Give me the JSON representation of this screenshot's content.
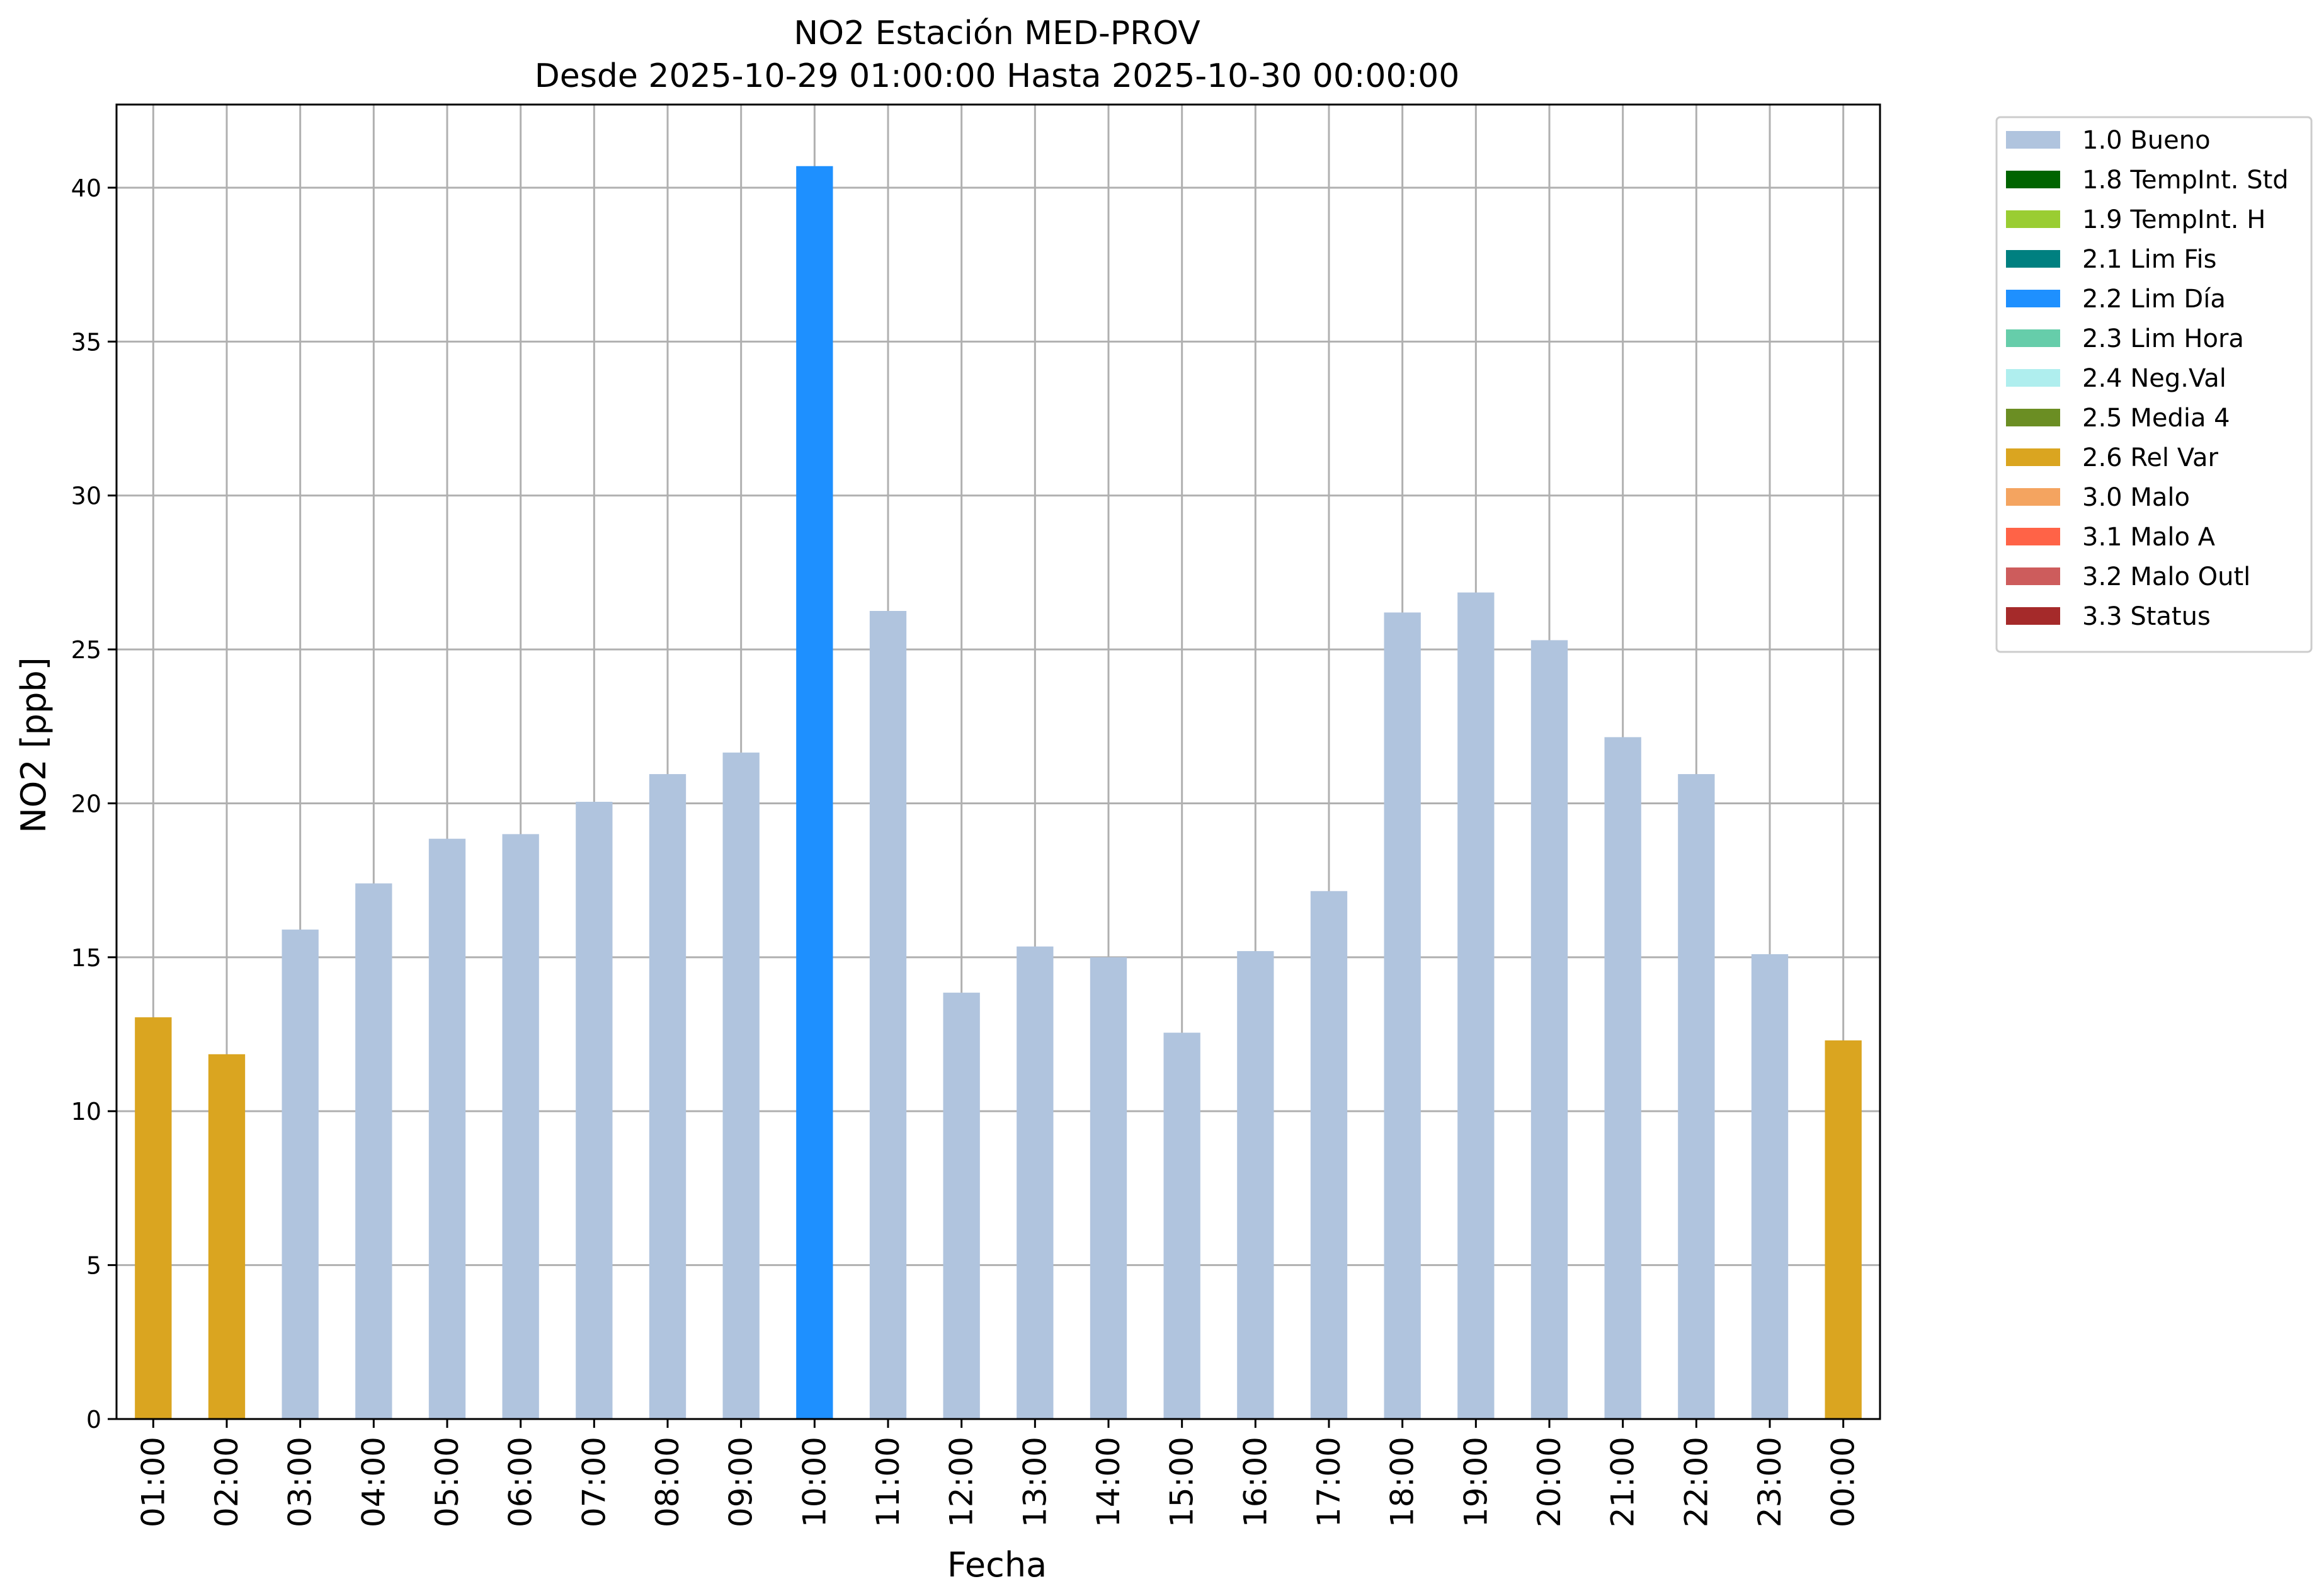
{
  "chart_data": {
    "type": "bar",
    "title": "NO2 Estación MED-PROV",
    "subtitle": "Desde 2025-10-29 01:00:00 Hasta 2025-10-30 00:00:00",
    "xlabel": "Fecha",
    "ylabel": "NO2 [ppb]",
    "ylim": [
      0,
      42.7
    ],
    "yticks": [
      0,
      5,
      10,
      15,
      20,
      25,
      30,
      35,
      40
    ],
    "grid": true,
    "legend_position": "outside-top-right",
    "categories": [
      "01:00",
      "02:00",
      "03:00",
      "04:00",
      "05:00",
      "06:00",
      "07:00",
      "08:00",
      "09:00",
      "10:00",
      "11:00",
      "12:00",
      "13:00",
      "14:00",
      "15:00",
      "16:00",
      "17:00",
      "18:00",
      "19:00",
      "20:00",
      "21:00",
      "22:00",
      "23:00",
      "00:00"
    ],
    "values": [
      13.05,
      11.85,
      15.9,
      17.4,
      18.85,
      19.0,
      20.05,
      20.95,
      21.65,
      40.7,
      26.25,
      13.85,
      15.35,
      15.0,
      12.55,
      15.2,
      17.15,
      26.2,
      26.85,
      25.3,
      22.15,
      20.95,
      15.1,
      12.3
    ],
    "categories_flag": [
      "2.6 Rel Var",
      "2.6 Rel Var",
      "1.0 Bueno",
      "1.0 Bueno",
      "1.0 Bueno",
      "1.0 Bueno",
      "1.0 Bueno",
      "1.0 Bueno",
      "1.0 Bueno",
      "2.2 Lim Día",
      "1.0 Bueno",
      "1.0 Bueno",
      "1.0 Bueno",
      "1.0 Bueno",
      "1.0 Bueno",
      "1.0 Bueno",
      "1.0 Bueno",
      "1.0 Bueno",
      "1.0 Bueno",
      "1.0 Bueno",
      "1.0 Bueno",
      "1.0 Bueno",
      "1.0 Bueno",
      "2.6 Rel Var"
    ],
    "legend": [
      {
        "label": "1.0 Bueno",
        "color": "#b0c4de"
      },
      {
        "label": "1.8 TempInt. Std",
        "color": "#006400"
      },
      {
        "label": "1.9 TempInt. H",
        "color": "#9acd32"
      },
      {
        "label": "2.1 Lim Fis",
        "color": "#008080"
      },
      {
        "label": "2.2 Lim Día",
        "color": "#1e90ff"
      },
      {
        "label": "2.3 Lim Hora",
        "color": "#66cdaa"
      },
      {
        "label": "2.4 Neg.Val",
        "color": "#afeeee"
      },
      {
        "label": "2.5 Media 4",
        "color": "#6b8e23"
      },
      {
        "label": "2.6 Rel Var",
        "color": "#daa520"
      },
      {
        "label": "3.0 Malo",
        "color": "#f4a460"
      },
      {
        "label": "3.1 Malo A",
        "color": "#ff6347"
      },
      {
        "label": "3.2 Malo Outl",
        "color": "#cd5c5c"
      },
      {
        "label": "3.3 Status",
        "color": "#a52a2a"
      }
    ]
  }
}
